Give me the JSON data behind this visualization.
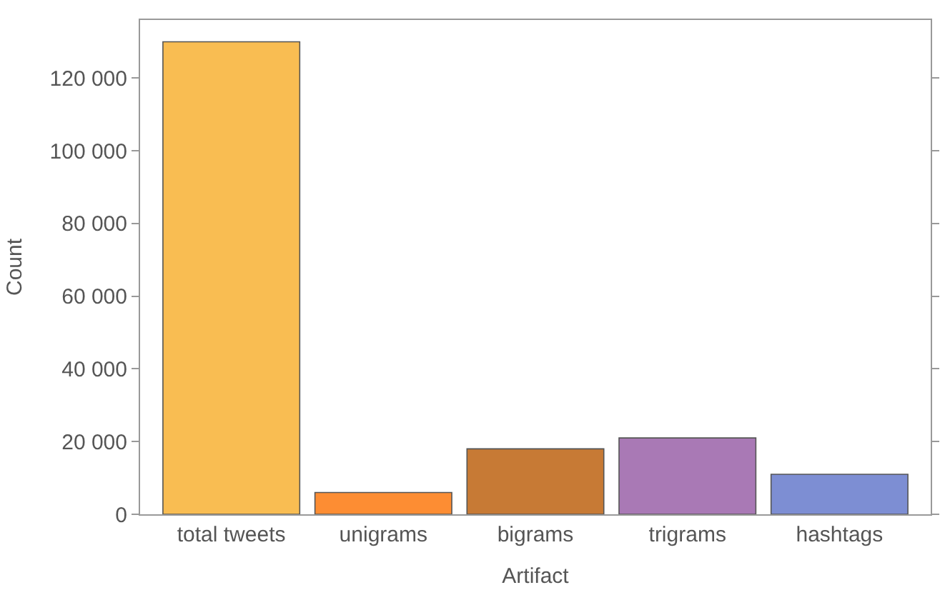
{
  "chart_data": {
    "type": "bar",
    "xlabel": "Artifact",
    "ylabel": "Count",
    "categories": [
      "total tweets",
      "unigrams",
      "bigrams",
      "trigrams",
      "hashtags"
    ],
    "values": [
      130000,
      6000,
      18000,
      21000,
      11000
    ],
    "colors": [
      "#f9bd52",
      "#fd8d33",
      "#c77a35",
      "#a979b5",
      "#7d8ed3"
    ],
    "ylim": [
      0,
      136000
    ],
    "yticks": [
      {
        "value": 0,
        "label": "0"
      },
      {
        "value": 20000,
        "label": "20 000"
      },
      {
        "value": 40000,
        "label": "40 000"
      },
      {
        "value": 60000,
        "label": "60 000"
      },
      {
        "value": 80000,
        "label": "80 000"
      },
      {
        "value": 100000,
        "label": "100 000"
      },
      {
        "value": 120000,
        "label": "120 000"
      }
    ]
  }
}
